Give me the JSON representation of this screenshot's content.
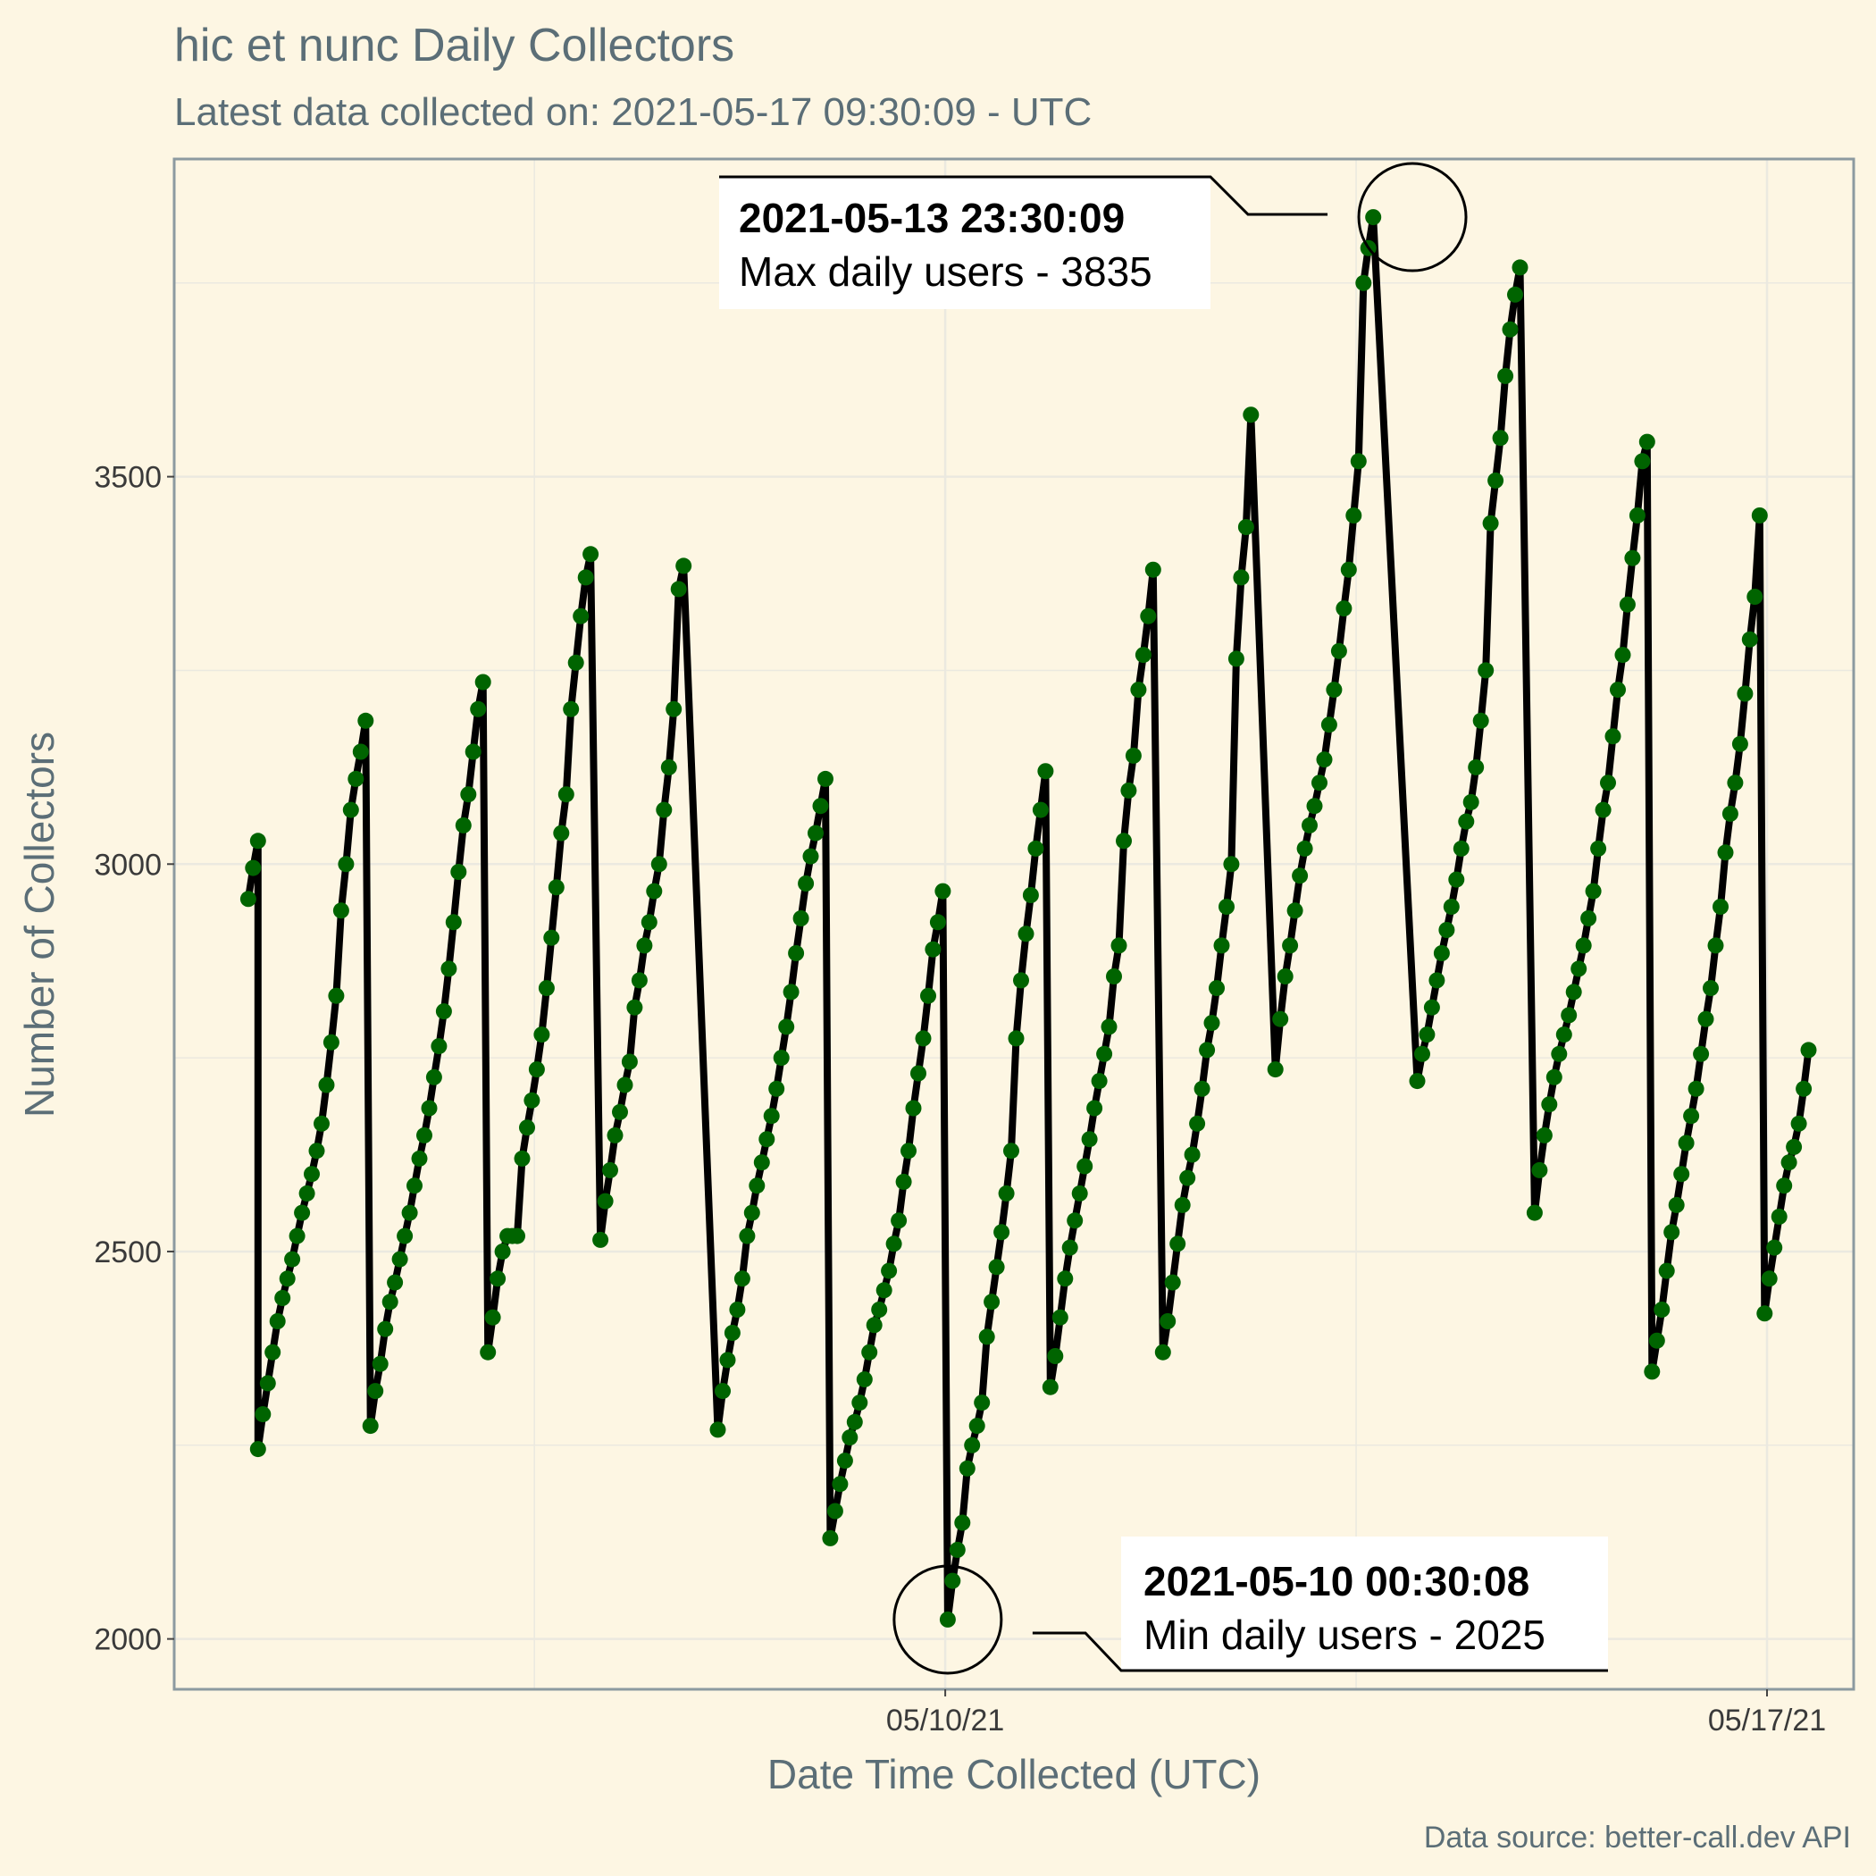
{
  "chart_data": {
    "type": "line",
    "title": "hic et nunc Daily Collectors",
    "subtitle": "Latest data collected on: 2021-05-17 09:30:09  - UTC",
    "xlabel": "Date Time Collected (UTC)",
    "ylabel": "Number of Collectors",
    "caption": "Data source: better-call.dev API",
    "x_ticks": [
      "2021-05-10",
      "2021-05-17"
    ],
    "x_tick_labels": [
      "05/10/21",
      "05/17/21"
    ],
    "y_ticks": [
      2000,
      2500,
      3000,
      3500
    ],
    "ylim": [
      1935,
      3910
    ],
    "xlim": [
      "2021-05-03T10:22:00",
      "2021-05-17T17:43:00"
    ],
    "grid": true,
    "colors": {
      "line": "#000000",
      "points": "#006400",
      "background": "#fdf6e3",
      "grid": "#ebe9e0"
    },
    "annotations": [
      {
        "label_bold": "2021-05-13 23:30:09",
        "label": "Max daily users - 3835",
        "x": "2021-05-13T23:30:09",
        "y": 3835
      },
      {
        "label_bold": "2021-05-10 00:30:08",
        "label": "Min daily users - 2025",
        "x": "2021-05-10T00:30:08",
        "y": 2025
      }
    ],
    "series": [
      {
        "segments": [
          {
            "start": "2021-05-04T01:30:00",
            "values": [
              2955,
              2995,
              3030
            ]
          },
          {
            "start": "2021-05-04T03:30:00",
            "values": [
              2245,
              2290,
              2330,
              2370,
              2410,
              2440,
              2465,
              2490,
              2520,
              2550,
              2575,
              2600,
              2630,
              2665,
              2715,
              2770,
              2830,
              2940,
              3000,
              3070,
              3110,
              3145,
              3185
            ]
          },
          {
            "start": "2021-05-05T02:30:00",
            "values": [
              2275,
              2320,
              2355,
              2400,
              2435,
              2460,
              2490,
              2520,
              2550,
              2585,
              2620,
              2650,
              2685,
              2725,
              2765,
              2810,
              2865,
              2925,
              2990,
              3050,
              3090,
              3145,
              3200,
              3235
            ]
          },
          {
            "start": "2021-05-06T02:30:00",
            "values": [
              2370,
              2415,
              2465,
              2500,
              2520,
              2520,
              2520,
              2620,
              2660,
              2695,
              2735,
              2780,
              2840,
              2905,
              2970,
              3040,
              3090,
              3200,
              3260,
              3320,
              3370,
              3400
            ]
          },
          {
            "start": "2021-05-07T01:30:00",
            "values": [
              2515,
              2565,
              2605,
              2650,
              2680,
              2715,
              2745,
              2815,
              2850,
              2895,
              2925,
              2965,
              3000,
              3070,
              3125,
              3200,
              3355,
              3385
            ]
          },
          {
            "start": "2021-05-08T01:30:00",
            "values": [
              2270,
              2320,
              2360,
              2395,
              2425,
              2465,
              2520,
              2550,
              2585,
              2615,
              2645,
              2675,
              2710,
              2750,
              2790,
              2835,
              2885,
              2930,
              2975,
              3010,
              3040,
              3075,
              3110
            ]
          },
          {
            "start": "2021-05-09T00:30:00",
            "values": [
              2130,
              2165,
              2200,
              2230,
              2260,
              2280,
              2305,
              2335,
              2370,
              2405,
              2425,
              2450,
              2475,
              2510,
              2540,
              2590,
              2630,
              2685,
              2730,
              2775,
              2830,
              2890,
              2925,
              2965
            ]
          },
          {
            "start": "2021-05-10T00:30:08",
            "values": [
              2025,
              2075,
              2115,
              2150,
              2220,
              2250,
              2275,
              2305,
              2390,
              2435,
              2480,
              2525,
              2575,
              2630,
              2775,
              2850,
              2910,
              2960,
              3020,
              3070,
              3120
            ]
          },
          {
            "start": "2021-05-10T21:30:00",
            "values": [
              2325,
              2365,
              2415,
              2465,
              2505,
              2540,
              2575,
              2610,
              2645,
              2685,
              2720,
              2755,
              2790,
              2855,
              2895,
              3030,
              3095,
              3140,
              3225,
              3270,
              3320,
              3380
            ]
          },
          {
            "start": "2021-05-11T20:30:00",
            "values": [
              2370,
              2410,
              2460,
              2510,
              2560,
              2595,
              2625,
              2665,
              2710,
              2760,
              2795,
              2840,
              2895,
              2945,
              3000,
              3265,
              3370,
              3435,
              3580
            ]
          },
          {
            "start": "2021-05-12T19:30:00",
            "values": [
              2735,
              2800,
              2855,
              2895,
              2940,
              2985,
              3020,
              3050,
              3075,
              3105,
              3135,
              3180,
              3225,
              3275,
              3330,
              3380,
              3450,
              3520,
              3750,
              3795,
              3835
            ]
          },
          {
            "start": "2021-05-14T00:30:00",
            "values": [
              2720,
              2755,
              2780,
              2815,
              2850,
              2885,
              2915,
              2945,
              2980,
              3020,
              3055,
              3080,
              3125,
              3185,
              3250,
              3440,
              3495,
              3550,
              3630,
              3690,
              3735,
              3770
            ]
          },
          {
            "start": "2021-05-15T00:30:00",
            "values": [
              2550,
              2605,
              2650,
              2690,
              2725,
              2755,
              2780,
              2805,
              2835,
              2865,
              2895,
              2930,
              2965,
              3020,
              3070,
              3105,
              3165,
              3225,
              3270,
              3335,
              3395,
              3450,
              3520,
              3545
            ]
          },
          {
            "start": "2021-05-16T00:30:00",
            "values": [
              2345,
              2385,
              2425,
              2475,
              2525,
              2560,
              2600,
              2640,
              2675,
              2710,
              2755,
              2800,
              2840,
              2895,
              2945,
              3015,
              3065,
              3105,
              3155,
              3220,
              3290,
              3345,
              3450
            ]
          },
          {
            "start": "2021-05-16T23:30:00",
            "values": [
              2420,
              2465,
              2505,
              2545,
              2585,
              2615,
              2635,
              2665,
              2710,
              2760
            ]
          }
        ]
      }
    ]
  }
}
